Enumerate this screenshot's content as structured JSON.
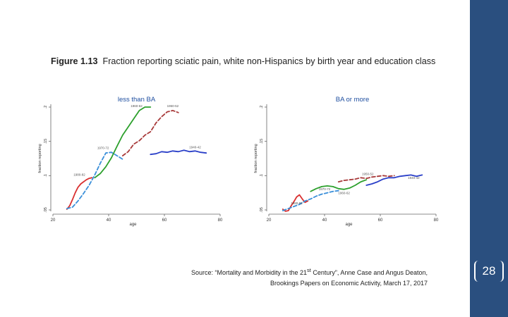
{
  "figure": {
    "label": "Figure 1.13",
    "title": "Fraction reporting sciatic pain, white non-Hispanics by birth year and education class"
  },
  "source": {
    "line1_prefix": "Source: “Mortality and Morbidity in the 21",
    "line1_sup": "st",
    "line1_suffix": " Century”, Anne Case and Angus Deaton,",
    "line2": "Brookings Papers on Economic Activity, March 17, 2017"
  },
  "slide": {
    "page_number": "28",
    "sidebar_color": "#2a4f7f"
  },
  "chart_data": [
    {
      "type": "line",
      "title": "less than BA",
      "xlabel": "age",
      "ylabel": "fraction reporting",
      "xlim": [
        20,
        80
      ],
      "ylim": [
        0.05,
        0.2
      ],
      "x_ticks": [
        "20",
        "40",
        "60",
        "80"
      ],
      "y_ticks": [
        {
          "value": 0.05,
          "label": ".05"
        },
        {
          "value": 0.1,
          "label": ".1"
        },
        {
          "value": 0.15,
          "label": ".15"
        },
        {
          "value": 0.2,
          "label": ".2"
        }
      ],
      "series": [
        {
          "name": "1980-82",
          "color": "#d93030",
          "dash": "solid",
          "x": [
            25,
            26,
            27,
            28,
            29,
            30,
            31,
            32,
            33,
            34
          ],
          "y": [
            0.051,
            0.056,
            0.065,
            0.075,
            0.083,
            0.088,
            0.091,
            0.094,
            0.096,
            0.097
          ]
        },
        {
          "name": "1970-72",
          "color": "#3a8fd9",
          "dash": "dashed",
          "x": [
            25,
            27,
            29,
            31,
            33,
            35,
            37,
            39,
            41,
            43,
            45
          ],
          "y": [
            0.052,
            0.054,
            0.063,
            0.074,
            0.086,
            0.101,
            0.118,
            0.133,
            0.134,
            0.129,
            0.124
          ]
        },
        {
          "name": "1960-62",
          "color": "#2ca02c",
          "dash": "solid",
          "x": [
            35,
            37,
            39,
            41,
            43,
            45,
            47,
            49,
            51,
            53,
            55
          ],
          "y": [
            0.097,
            0.103,
            0.113,
            0.126,
            0.143,
            0.159,
            0.171,
            0.183,
            0.195,
            0.2,
            0.2
          ]
        },
        {
          "name": "1950-52",
          "color": "#a83a3a",
          "dash": "dashed",
          "x": [
            45,
            47,
            49,
            51,
            53,
            55,
            57,
            59,
            61,
            63,
            65
          ],
          "y": [
            0.129,
            0.135,
            0.146,
            0.151,
            0.159,
            0.164,
            0.177,
            0.186,
            0.193,
            0.195,
            0.192
          ]
        },
        {
          "name": "1940-42",
          "color": "#2a3fc8",
          "dash": "solid",
          "x": [
            55,
            57,
            59,
            61,
            63,
            65,
            67,
            69,
            71,
            73,
            75
          ],
          "y": [
            0.131,
            0.132,
            0.135,
            0.134,
            0.136,
            0.135,
            0.137,
            0.135,
            0.136,
            0.134,
            0.133
          ]
        }
      ],
      "annotations": [
        {
          "text": "1980-82",
          "x": 29.5,
          "y": 0.1
        },
        {
          "text": "1970-72",
          "x": 38,
          "y": 0.139
        },
        {
          "text": "1960-62",
          "x": 50,
          "y": 0.2
        },
        {
          "text": "1950-52",
          "x": 63,
          "y": 0.2
        },
        {
          "text": "1940-42",
          "x": 71,
          "y": 0.14
        }
      ]
    },
    {
      "type": "line",
      "title": "BA or more",
      "xlabel": "age",
      "ylabel": "fraction reporting",
      "xlim": [
        20,
        80
      ],
      "ylim": [
        0.05,
        0.2
      ],
      "x_ticks": [
        "20",
        "40",
        "60",
        "80"
      ],
      "y_ticks": [
        {
          "value": 0.05,
          "label": ".05"
        },
        {
          "value": 0.1,
          "label": ".1"
        },
        {
          "value": 0.15,
          "label": ".15"
        },
        {
          "value": 0.2,
          "label": ".2"
        }
      ],
      "series": [
        {
          "name": "1980-82",
          "color": "#d93030",
          "dash": "solid",
          "x": [
            25,
            26,
            27,
            28,
            29,
            30,
            31,
            32,
            33,
            34
          ],
          "y": [
            0.051,
            0.048,
            0.049,
            0.056,
            0.062,
            0.069,
            0.072,
            0.066,
            0.061,
            0.063
          ]
        },
        {
          "name": "1970-72",
          "color": "#3a8fd9",
          "dash": "dashed",
          "x": [
            25,
            27,
            29,
            31,
            33,
            35,
            37,
            39,
            41,
            43,
            45
          ],
          "y": [
            0.049,
            0.052,
            0.055,
            0.058,
            0.063,
            0.066,
            0.07,
            0.073,
            0.075,
            0.077,
            0.078
          ]
        },
        {
          "name": "1960-62",
          "color": "#2ca02c",
          "dash": "solid",
          "x": [
            35,
            37,
            39,
            41,
            43,
            45,
            47,
            49,
            51,
            53,
            55
          ],
          "y": [
            0.077,
            0.081,
            0.084,
            0.085,
            0.084,
            0.081,
            0.08,
            0.082,
            0.086,
            0.091,
            0.094
          ]
        },
        {
          "name": "1950-52",
          "color": "#a83a3a",
          "dash": "dashed",
          "x": [
            45,
            47,
            49,
            51,
            53,
            55,
            57,
            59,
            61,
            63,
            65
          ],
          "y": [
            0.091,
            0.093,
            0.094,
            0.095,
            0.097,
            0.096,
            0.098,
            0.099,
            0.1,
            0.099,
            0.1
          ]
        },
        {
          "name": "1940-42",
          "color": "#2a3fc8",
          "dash": "solid",
          "x": [
            55,
            57,
            59,
            61,
            63,
            65,
            67,
            69,
            71,
            73,
            75
          ],
          "y": [
            0.086,
            0.088,
            0.091,
            0.095,
            0.097,
            0.097,
            0.099,
            0.1,
            0.101,
            0.099,
            0.101
          ]
        }
      ],
      "annotations": [
        {
          "text": "1980-82",
          "x": 30,
          "y": 0.058
        },
        {
          "text": "1970-72",
          "x": 40,
          "y": 0.079
        },
        {
          "text": "1960-62",
          "x": 47,
          "y": 0.073
        },
        {
          "text": "1950-52",
          "x": 55.5,
          "y": 0.101
        },
        {
          "text": "1940-42",
          "x": 72,
          "y": 0.095
        }
      ]
    }
  ]
}
